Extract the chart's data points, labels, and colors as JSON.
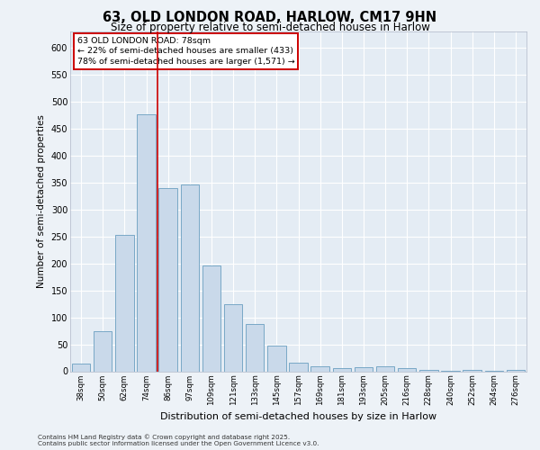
{
  "title_line1": "63, OLD LONDON ROAD, HARLOW, CM17 9HN",
  "title_line2": "Size of property relative to semi-detached houses in Harlow",
  "xlabel": "Distribution of semi-detached houses by size in Harlow",
  "ylabel": "Number of semi-detached properties",
  "categories": [
    "38sqm",
    "50sqm",
    "62sqm",
    "74sqm",
    "86sqm",
    "97sqm",
    "109sqm",
    "121sqm",
    "133sqm",
    "145sqm",
    "157sqm",
    "169sqm",
    "181sqm",
    "193sqm",
    "205sqm",
    "216sqm",
    "228sqm",
    "240sqm",
    "252sqm",
    "264sqm",
    "276sqm"
  ],
  "values": [
    14,
    75,
    253,
    476,
    340,
    347,
    196,
    125,
    87,
    47,
    16,
    9,
    6,
    7,
    9,
    6,
    3,
    1,
    3,
    1,
    3
  ],
  "bar_color": "#c9d9ea",
  "bar_edge_color": "#6a9fc0",
  "redline_x": 3.5,
  "redline_label": "63 OLD LONDON ROAD: 78sqm",
  "annotation_smaller": "← 22% of semi-detached houses are smaller (433)",
  "annotation_larger": "78% of semi-detached houses are larger (1,571) →",
  "footnote_line1": "Contains HM Land Registry data © Crown copyright and database right 2025.",
  "footnote_line2": "Contains public sector information licensed under the Open Government Licence v3.0.",
  "ylim": [
    0,
    630
  ],
  "yticks": [
    0,
    50,
    100,
    150,
    200,
    250,
    300,
    350,
    400,
    450,
    500,
    550,
    600
  ],
  "background_color": "#edf2f7",
  "plot_bg_color": "#e4ecf4",
  "grid_color": "#ffffff"
}
